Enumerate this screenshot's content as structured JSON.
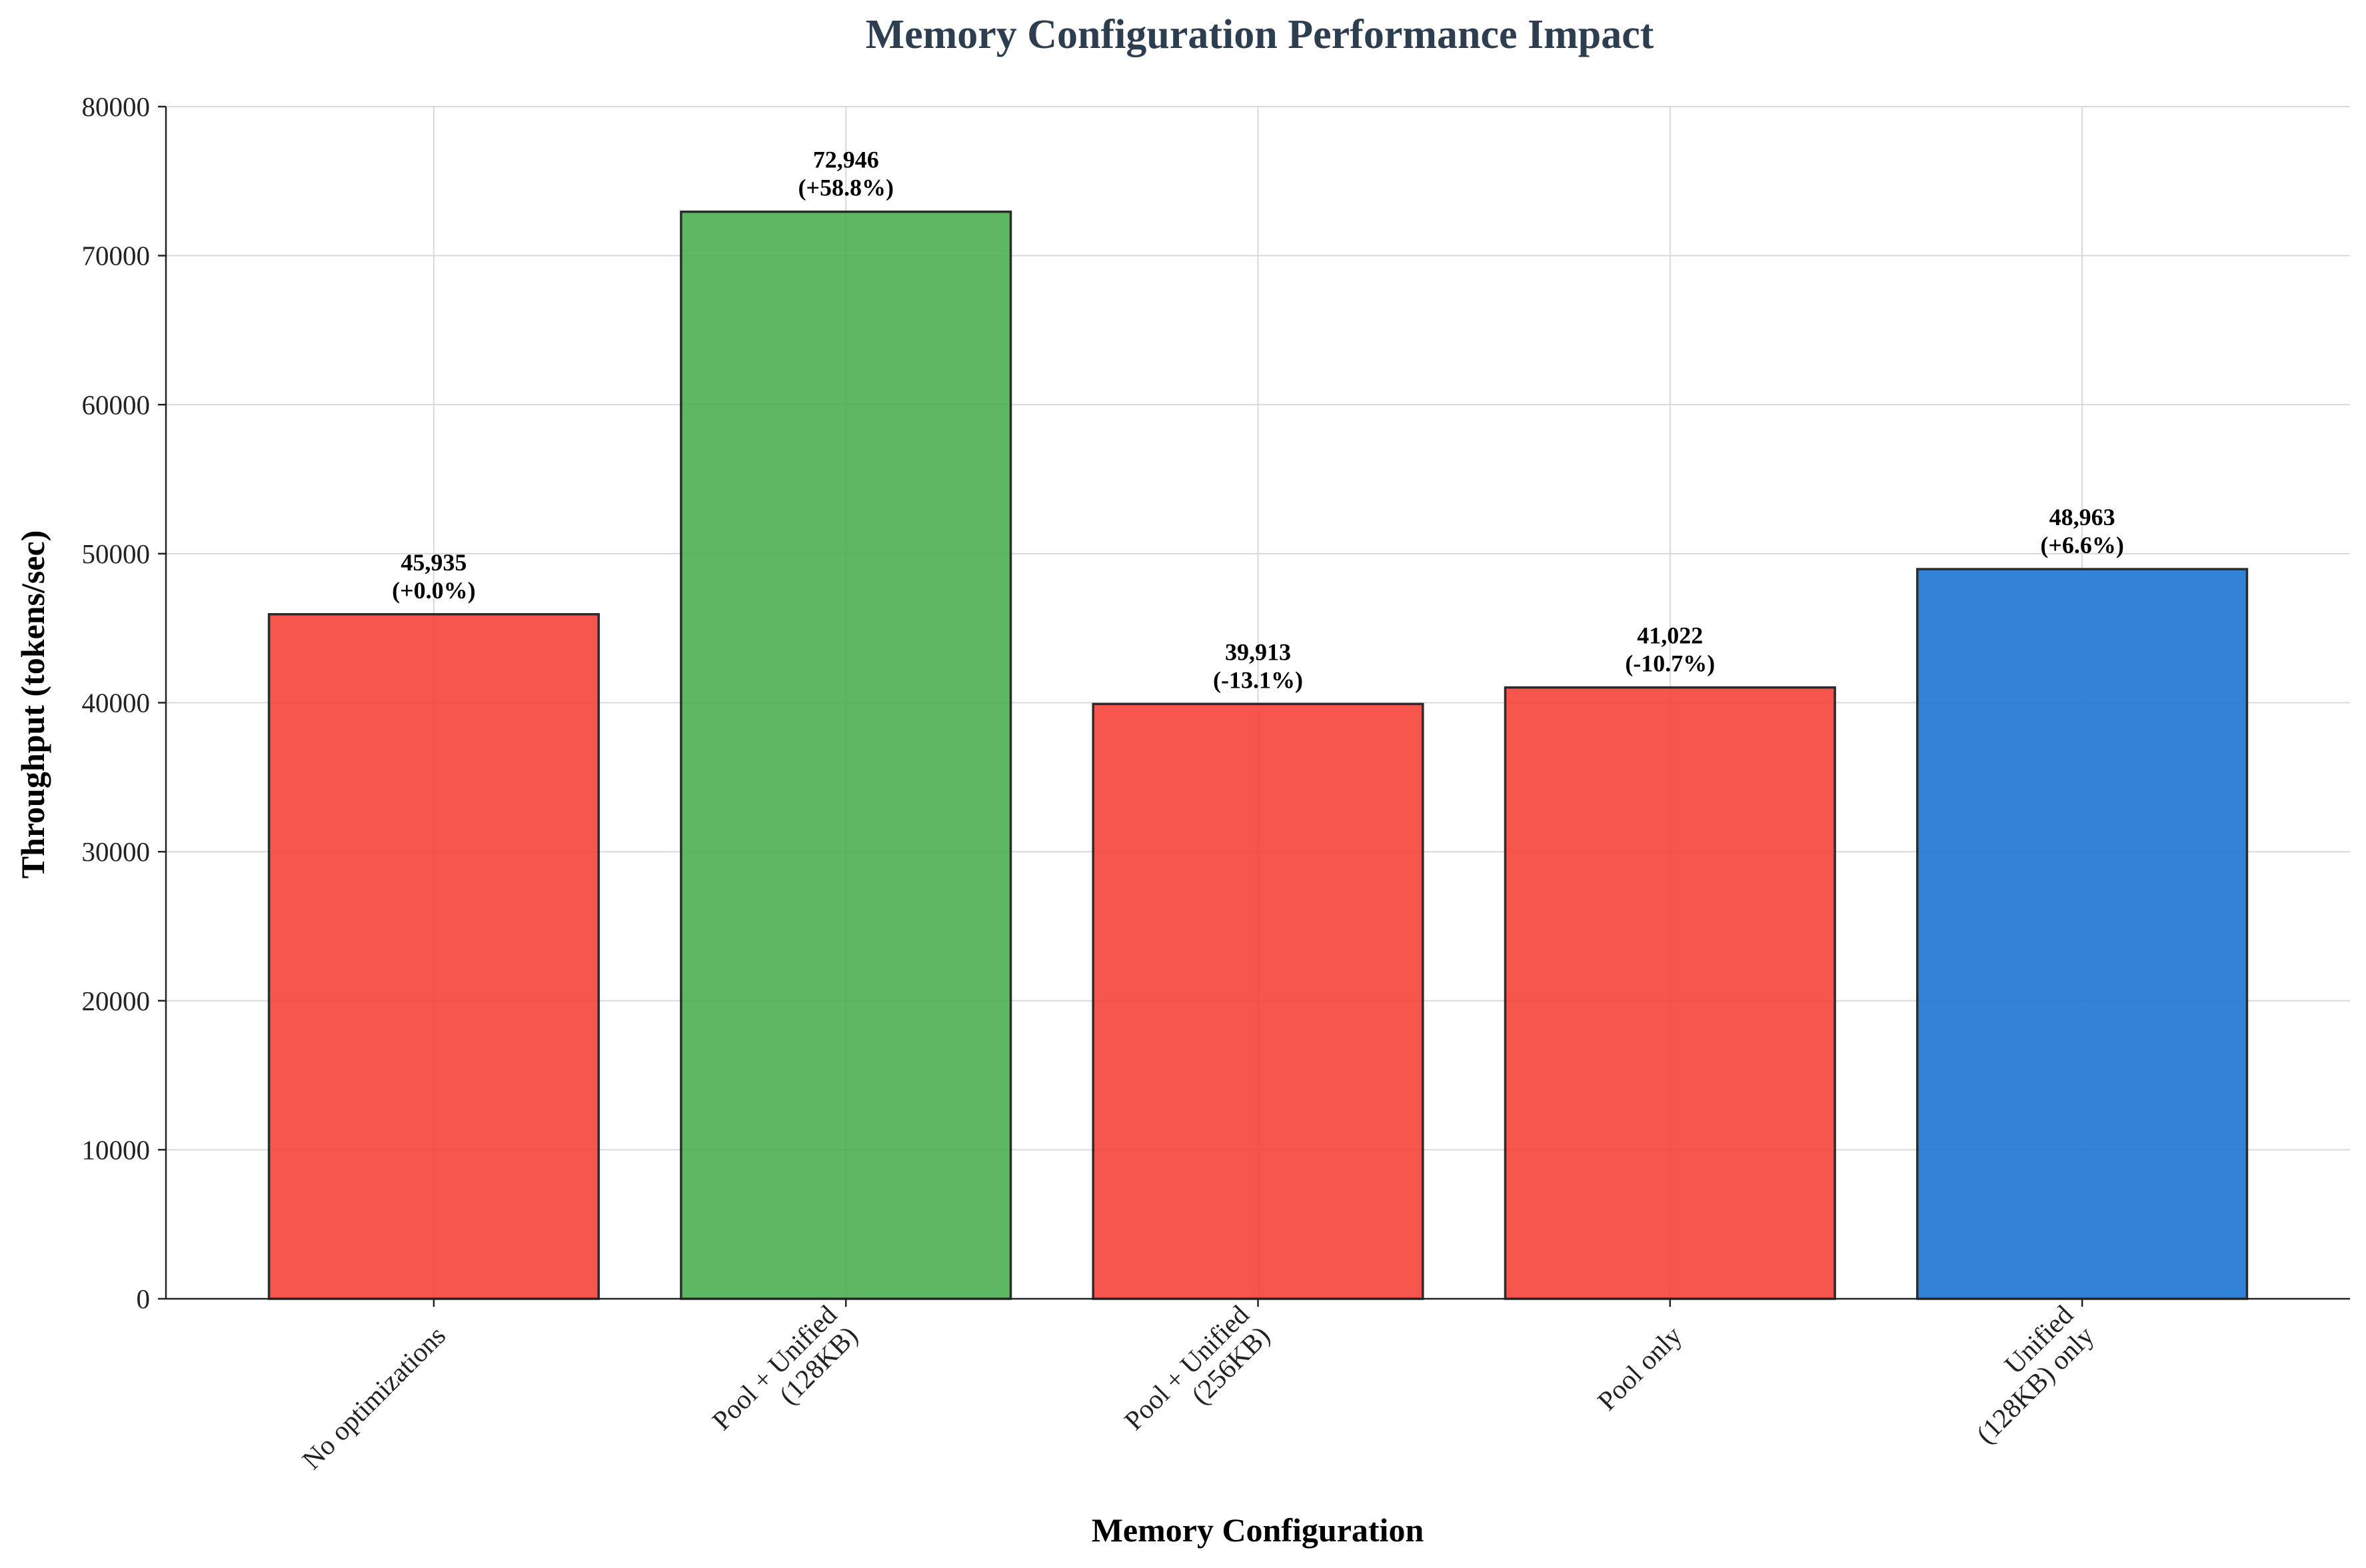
{
  "chart_data": {
    "type": "bar",
    "title": "Memory Configuration Performance Impact",
    "xlabel": "Memory Configuration",
    "ylabel": "Throughput (tokens/sec)",
    "ylim": [
      0,
      80000
    ],
    "yticks": [
      "0",
      "10000",
      "20000",
      "30000",
      "40000",
      "50000",
      "60000",
      "70000",
      "80000"
    ],
    "grid": true,
    "legend": "none",
    "categories": [
      [
        "No optimizations"
      ],
      [
        "Pool + Unified",
        "(128KB)"
      ],
      [
        "Pool + Unified",
        "(256KB)"
      ],
      [
        "Pool only"
      ],
      [
        "Unified",
        "(128KB) only"
      ]
    ],
    "values": [
      45935,
      72946,
      39913,
      41022,
      48963
    ],
    "value_labels": [
      "45,935",
      "72,946",
      "39,913",
      "41,022",
      "48,963"
    ],
    "change_labels": [
      "(+0.0%)",
      "(+58.8%)",
      "(-13.1%)",
      "(-10.7%)",
      "(+6.6%)"
    ],
    "colors": [
      "#f44336",
      "#4caf50",
      "#f44336",
      "#f44336",
      "#1976d2"
    ]
  }
}
